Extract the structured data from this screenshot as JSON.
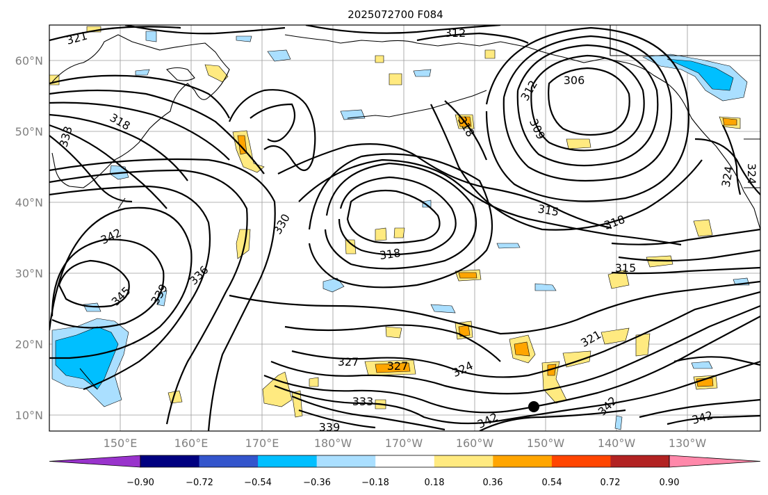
{
  "title": "2025072700 F084",
  "lat_labels": [
    "60°N",
    "50°N",
    "40°N",
    "30°N",
    "20°N",
    "10°N"
  ],
  "lon_labels": [
    "150°E",
    "160°E",
    "170°E",
    "180°W",
    "170°W",
    "160°W",
    "150°W",
    "140°W",
    "130°W"
  ],
  "colorbar": {
    "ticks": [
      "−0.90",
      "−0.72",
      "−0.54",
      "−0.36",
      "−0.18",
      "0.18",
      "0.36",
      "0.54",
      "0.72",
      "0.90"
    ],
    "colors": [
      "#9933cc",
      "#000080",
      "#3355cc",
      "#00bfff",
      "#aadfff",
      "#ffffff",
      "#ffea80",
      "#ffa500",
      "#ff4500",
      "#b22222",
      "#ff88aa"
    ]
  },
  "contour_labels": [
    "321",
    "312",
    "306",
    "312",
    "309",
    "318",
    "333",
    "318",
    "330",
    "315",
    "318",
    "342",
    "318",
    "315",
    "336",
    "339",
    "345",
    "321",
    "327",
    "327",
    "324",
    "333",
    "339",
    "342",
    "342",
    "342",
    "324",
    "324"
  ]
}
